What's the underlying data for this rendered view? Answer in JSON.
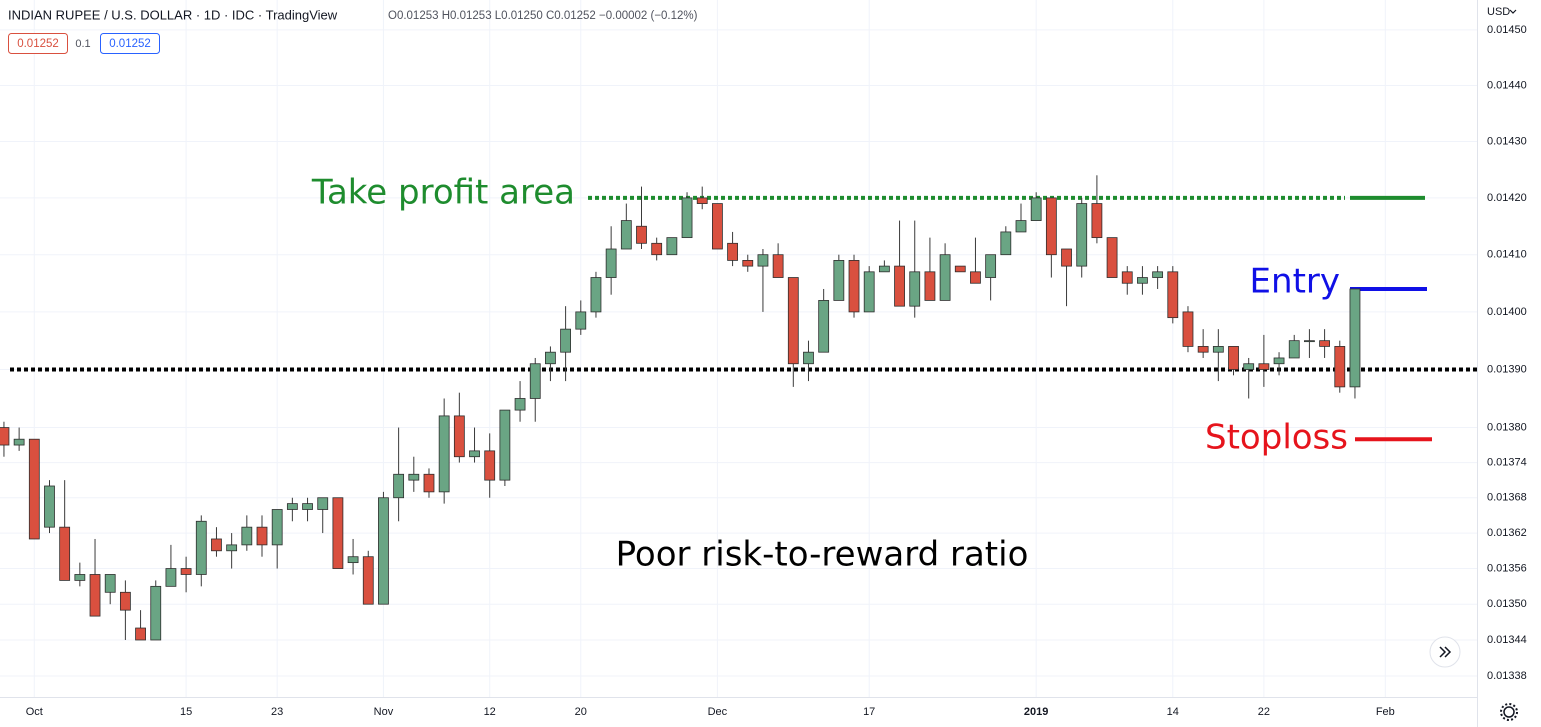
{
  "chart_data": {
    "type": "candlestick",
    "title": "INDIAN RUPEE / U.S. DOLLAR · 1D · IDC · TradingView",
    "ohlc_legend": "O0.01253 H0.01253 L0.01250 C0.01252 −0.00002 (−0.12%)",
    "badges": [
      {
        "text": "0.01252",
        "color": "#d9503f"
      },
      {
        "text": "0.1"
      },
      {
        "text": "0.01252",
        "color": "#2962ff"
      }
    ],
    "currency": "USD",
    "up_color": "#6aa584",
    "down_color": "#d9503f",
    "log_scale": true,
    "grid": true,
    "open": [
      0.0138,
      0.01377,
      0.01378,
      0.01363,
      0.01363,
      0.01354,
      0.01355,
      0.01352,
      0.01352,
      0.01346,
      0.01344,
      0.01353,
      0.01356,
      0.01355,
      0.01361,
      0.01359,
      0.0136,
      0.01363,
      0.0136,
      0.01366,
      0.01366,
      0.01366,
      0.01368,
      0.01357,
      0.01358,
      0.0135,
      0.01368,
      0.01371,
      0.01372,
      0.01369,
      0.01382,
      0.01375,
      0.01376,
      0.01371,
      0.01383,
      0.01385,
      0.01391,
      0.01393,
      0.01397,
      0.014,
      0.01406,
      0.01411,
      0.01415,
      0.01412,
      0.0141,
      0.01413,
      0.0142,
      0.01419,
      0.01412,
      0.01409,
      0.01408,
      0.0141,
      0.01406,
      0.01391,
      0.01393,
      0.01402,
      0.01409,
      0.014,
      0.01407,
      0.01408,
      0.01401,
      0.01407,
      0.01402,
      0.01408,
      0.01407,
      0.01406,
      0.0141,
      0.01414,
      0.01416,
      0.0142,
      0.01411,
      0.01408,
      0.01419,
      0.01413,
      0.01407,
      0.01405,
      0.01406,
      0.01407,
      0.014,
      0.01394,
      0.01393,
      0.01394,
      0.0139,
      0.01391,
      0.01391,
      0.01392,
      0.01395,
      0.01395,
      0.01394,
      0.01387
    ],
    "high": [
      0.01381,
      0.0138,
      0.01378,
      0.01371,
      0.01371,
      0.01357,
      0.01361,
      0.01355,
      0.01354,
      0.01349,
      0.01354,
      0.0136,
      0.01358,
      0.01365,
      0.01363,
      0.01362,
      0.01365,
      0.01365,
      0.01366,
      0.01368,
      0.01368,
      0.01368,
      0.01368,
      0.01361,
      0.01359,
      0.01369,
      0.0138,
      0.01375,
      0.01373,
      0.01385,
      0.01386,
      0.0138,
      0.01379,
      0.01383,
      0.01388,
      0.01392,
      0.01394,
      0.01401,
      0.01402,
      0.01407,
      0.01415,
      0.01419,
      0.01422,
      0.01413,
      0.01413,
      0.01421,
      0.01422,
      0.01419,
      0.01414,
      0.0141,
      0.01411,
      0.01412,
      0.01406,
      0.01395,
      0.01404,
      0.0141,
      0.0141,
      0.01408,
      0.01409,
      0.01416,
      0.01416,
      0.01413,
      0.01412,
      0.01408,
      0.01413,
      0.0141,
      0.01415,
      0.01419,
      0.01421,
      0.0142,
      0.01411,
      0.0142,
      0.01424,
      0.01413,
      0.01408,
      0.01408,
      0.01408,
      0.01408,
      0.01401,
      0.01397,
      0.01397,
      0.01394,
      0.01392,
      0.01396,
      0.01393,
      0.01396,
      0.01397,
      0.01397,
      0.01395,
      0.01404
    ],
    "low": [
      0.01375,
      0.01376,
      0.01361,
      0.01362,
      0.01354,
      0.01353,
      0.01348,
      0.0135,
      0.01344,
      0.01344,
      0.01344,
      0.01353,
      0.01352,
      0.01353,
      0.01358,
      0.01356,
      0.01359,
      0.01358,
      0.01356,
      0.01364,
      0.01364,
      0.01362,
      0.01356,
      0.01355,
      0.0135,
      0.0135,
      0.01364,
      0.01369,
      0.01368,
      0.01367,
      0.01374,
      0.01374,
      0.01368,
      0.0137,
      0.01381,
      0.01381,
      0.01388,
      0.01388,
      0.01396,
      0.01399,
      0.01403,
      0.01411,
      0.01411,
      0.01409,
      0.0141,
      0.01413,
      0.01418,
      0.01411,
      0.01408,
      0.01407,
      0.014,
      0.01406,
      0.01387,
      0.01388,
      0.01393,
      0.01402,
      0.01399,
      0.014,
      0.01407,
      0.01401,
      0.01399,
      0.01402,
      0.01402,
      0.01407,
      0.01405,
      0.01402,
      0.0141,
      0.01414,
      0.01416,
      0.01406,
      0.01401,
      0.01406,
      0.01412,
      0.01406,
      0.01403,
      0.01403,
      0.01404,
      0.01398,
      0.01393,
      0.01392,
      0.01388,
      0.01389,
      0.01385,
      0.01387,
      0.01389,
      0.01392,
      0.01392,
      0.01392,
      0.01386,
      0.01385
    ],
    "close": [
      0.01377,
      0.01378,
      0.01361,
      0.0137,
      0.01354,
      0.01355,
      0.01348,
      0.01355,
      0.01349,
      0.01344,
      0.01353,
      0.01356,
      0.01355,
      0.01364,
      0.01359,
      0.0136,
      0.01363,
      0.0136,
      0.01366,
      0.01367,
      0.01367,
      0.01368,
      0.01356,
      0.01358,
      0.0135,
      0.01368,
      0.01372,
      0.01372,
      0.01369,
      0.01382,
      0.01375,
      0.01376,
      0.01371,
      0.01383,
      0.01385,
      0.01391,
      0.01393,
      0.01397,
      0.014,
      0.01406,
      0.01411,
      0.01416,
      0.01412,
      0.0141,
      0.01413,
      0.0142,
      0.01419,
      0.01411,
      0.01409,
      0.01408,
      0.0141,
      0.01406,
      0.01391,
      0.01393,
      0.01402,
      0.01409,
      0.014,
      0.01407,
      0.01408,
      0.01401,
      0.01407,
      0.01402,
      0.0141,
      0.01407,
      0.01405,
      0.0141,
      0.01414,
      0.01416,
      0.0142,
      0.0141,
      0.01408,
      0.01419,
      0.01413,
      0.01406,
      0.01405,
      0.01406,
      0.01407,
      0.01399,
      0.01394,
      0.01393,
      0.01394,
      0.0139,
      0.01391,
      0.0139,
      0.01392,
      0.01395,
      0.01395,
      0.01394,
      0.01387,
      0.01404
    ],
    "xlim": [
      -0.26,
      97.04
    ],
    "xticks": [
      {
        "value": 2,
        "label": "Oct"
      },
      {
        "value": 12,
        "label": "15"
      },
      {
        "value": 18,
        "label": "23"
      },
      {
        "value": 25,
        "label": "Nov"
      },
      {
        "value": 32,
        "label": "12"
      },
      {
        "value": 38,
        "label": "20"
      },
      {
        "value": 47,
        "label": "Dec"
      },
      {
        "value": 57,
        "label": "17"
      },
      {
        "value": 68,
        "label": "2019"
      },
      {
        "value": 77,
        "label": "14"
      },
      {
        "value": 83,
        "label": "22"
      },
      {
        "value": 91,
        "label": "Feb"
      }
    ],
    "ylim": [
      0.013345,
      0.014554
    ],
    "yticks": [
      {
        "value": 0.0145,
        "label": "0.01450"
      },
      {
        "value": 0.0144,
        "label": "0.01440"
      },
      {
        "value": 0.0143,
        "label": "0.01430"
      },
      {
        "value": 0.0142,
        "label": "0.01420"
      },
      {
        "value": 0.0141,
        "label": "0.01410"
      },
      {
        "value": 0.014,
        "label": "0.01400"
      },
      {
        "value": 0.0139,
        "label": "0.01390"
      },
      {
        "value": 0.0138,
        "label": "0.01380"
      },
      0.01374,
      0.01368,
      0.01362,
      0.01356,
      {
        "value": 0.0135,
        "label": "0.01350"
      },
      0.01344,
      0.01338
    ],
    "dotted_lines": [
      {
        "value": 0.0142,
        "color": "#1e8c2e"
      },
      {
        "value": 0.0139,
        "color": "#000000"
      }
    ],
    "markers": [
      {
        "label": "Take profit area",
        "value": 0.0142,
        "color": "#1e8c2e"
      },
      {
        "label": "Entry",
        "value": 0.01404,
        "color": "#1010e6"
      },
      {
        "label": "Stoploss",
        "value": 0.01378,
        "color": "#e6141c"
      }
    ],
    "note": "Poor risk-to-reward ratio"
  }
}
